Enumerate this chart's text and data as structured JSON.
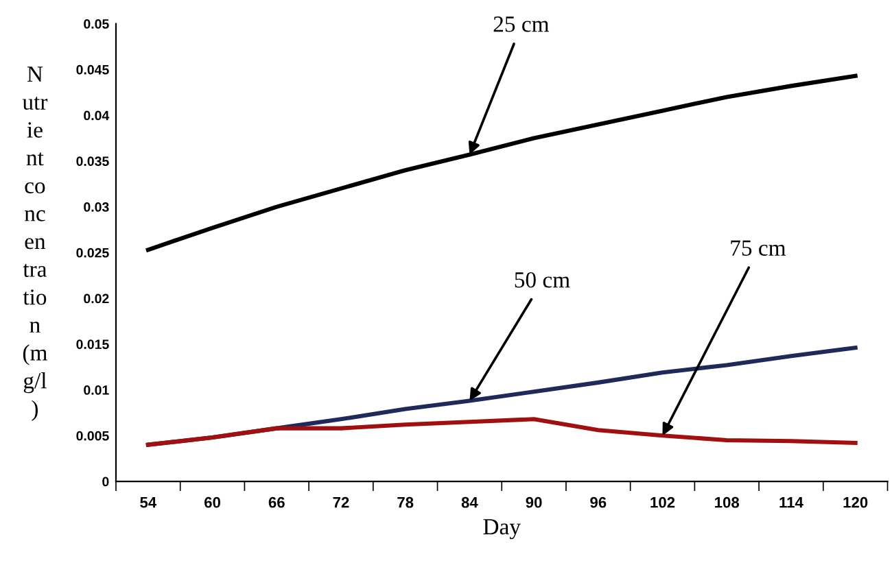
{
  "chart_data": {
    "type": "line",
    "xlabel": "Day",
    "ylabel": "N\nutr\nie\nnt\nco\nnc\nen\ntra\ntio\nn\n(m\ng/l\n)",
    "categories": [
      "54",
      "60",
      "66",
      "72",
      "78",
      "84",
      "90",
      "96",
      "102",
      "108",
      "114",
      "120"
    ],
    "series": [
      {
        "color": "#000000",
        "values": [
          0.0253,
          0.0277,
          0.03,
          0.032,
          0.034,
          0.0357,
          0.0375,
          0.039,
          0.0405,
          0.042,
          0.0432,
          0.0443
        ]
      },
      {
        "color": "#1f2a5a",
        "values": [
          0.004,
          0.0048,
          0.0058,
          0.0068,
          0.0079,
          0.0088,
          0.0098,
          0.0108,
          0.0119,
          0.0127,
          0.0137,
          0.0146
        ]
      },
      {
        "color": "#a01010",
        "values": [
          0.004,
          0.0048,
          0.0058,
          0.0058,
          0.0062,
          0.0065,
          0.0068,
          0.0056,
          0.005,
          0.0045,
          0.0044,
          0.0042
        ]
      }
    ],
    "ylim": [
      0,
      0.05
    ],
    "yticks": [
      0,
      0.005,
      0.01,
      0.015,
      0.02,
      0.025,
      0.03,
      0.035,
      0.04,
      0.045,
      0.05
    ],
    "annotations": [
      {
        "text": "25 cm",
        "x": "84",
        "y": 0.0357
      },
      {
        "text": "50 cm",
        "x": "84",
        "y": 0.0088
      },
      {
        "text": "75 cm",
        "x": "102",
        "y": 0.005
      }
    ],
    "grid": false,
    "legend": false,
    "marker": "none",
    "line_style": "solid"
  }
}
